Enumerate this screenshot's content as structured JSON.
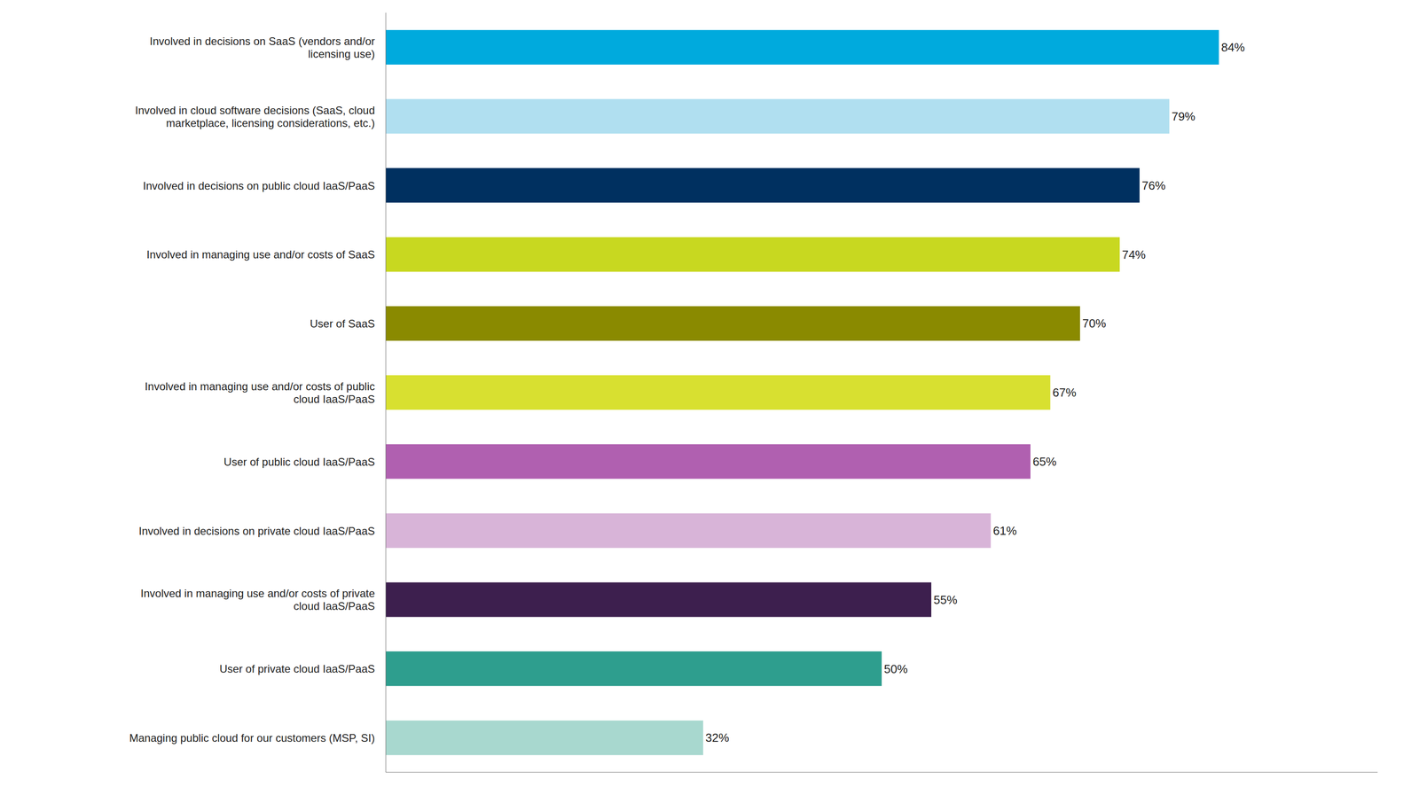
{
  "chart_data": {
    "type": "bar",
    "orientation": "horizontal",
    "categories": [
      "Managing public cloud for our customers (MSP, SI)",
      "User of private cloud IaaS/PaaS",
      "Involved in managing use and/or costs of private\ncloud IaaS/PaaS",
      "Involved in decisions on private cloud IaaS/PaaS",
      "User of public cloud IaaS/PaaS",
      "Involved in managing use and/or costs of public\ncloud IaaS/PaaS",
      "User of SaaS",
      "Involved in managing use and/or costs of SaaS",
      "Involved in decisions on public cloud IaaS/PaaS",
      "Involved in cloud software decisions (SaaS, cloud\nmarketplace, licensing considerations, etc.)",
      "Involved in decisions on SaaS (vendors and/or\nlicensing use)"
    ],
    "values": [
      32,
      50,
      55,
      61,
      65,
      67,
      70,
      74,
      76,
      79,
      84
    ],
    "value_labels": [
      "32%",
      "50%",
      "55%",
      "61%",
      "65%",
      "67%",
      "70%",
      "74%",
      "76%",
      "79%",
      "84%"
    ],
    "colors": [
      "#a8d8cf",
      "#2e9e8e",
      "#3d1f4e",
      "#d8b4d8",
      "#b060b0",
      "#d8e030",
      "#8a8a00",
      "#c8d820",
      "#003060",
      "#b0dff0",
      "#00aadd"
    ],
    "xlim": [
      0,
      100
    ],
    "data_labels": true,
    "tick_labels": "y",
    "grid": false
  }
}
